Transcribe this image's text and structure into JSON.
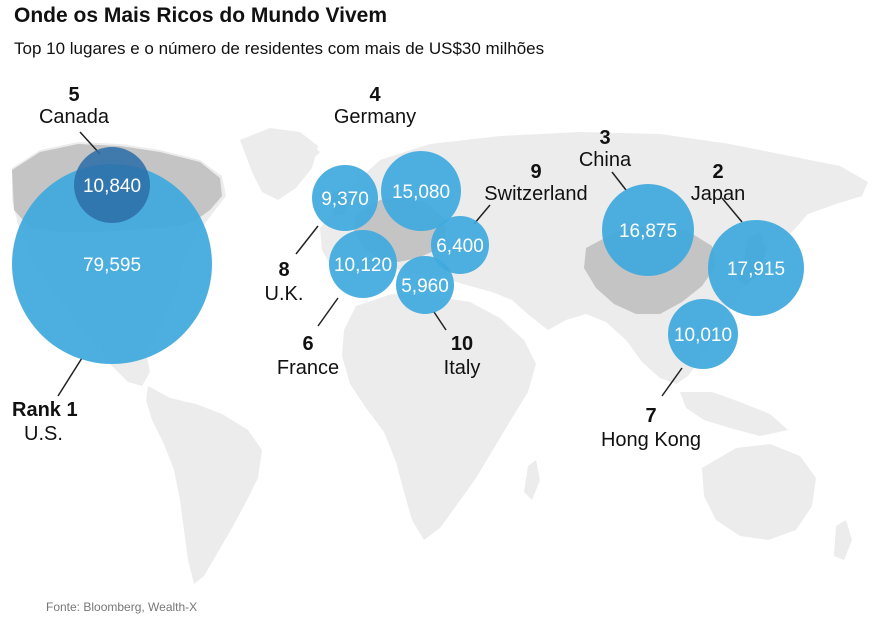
{
  "title": "Onde os Mais Ricos do Mundo Vivem",
  "subtitle": "Top 10 lugares e o número de residentes com mais de US$30 milhões",
  "source": "Fonte: Bloomberg, Wealth-X",
  "colors": {
    "bubble": "#3fa9de",
    "bubble_dark": "#2d6fa8",
    "land": "#ececec",
    "land_highlight": "#c4c4c4",
    "leader": "#222222"
  },
  "places": [
    {
      "rank": "Rank 1",
      "name": "U.S.",
      "value": "79,595",
      "value_num": 79595
    },
    {
      "rank": "2",
      "name": "Japan",
      "value": "17,915",
      "value_num": 17915
    },
    {
      "rank": "3",
      "name": "China",
      "value": "16,875",
      "value_num": 16875
    },
    {
      "rank": "4",
      "name": "Germany",
      "value": "15,080",
      "value_num": 15080
    },
    {
      "rank": "5",
      "name": "Canada",
      "value": "10,840",
      "value_num": 10840
    },
    {
      "rank": "6",
      "name": "France",
      "value": "10,120",
      "value_num": 10120
    },
    {
      "rank": "7",
      "name": "Hong Kong",
      "value": "10,010",
      "value_num": 10010
    },
    {
      "rank": "8",
      "name": "U.K.",
      "value": "9,370",
      "value_num": 9370
    },
    {
      "rank": "9",
      "name": "Switzerland",
      "value": "6,400",
      "value_num": 6400
    },
    {
      "rank": "10",
      "name": "Italy",
      "value": "5,960",
      "value_num": 5960
    }
  ]
}
